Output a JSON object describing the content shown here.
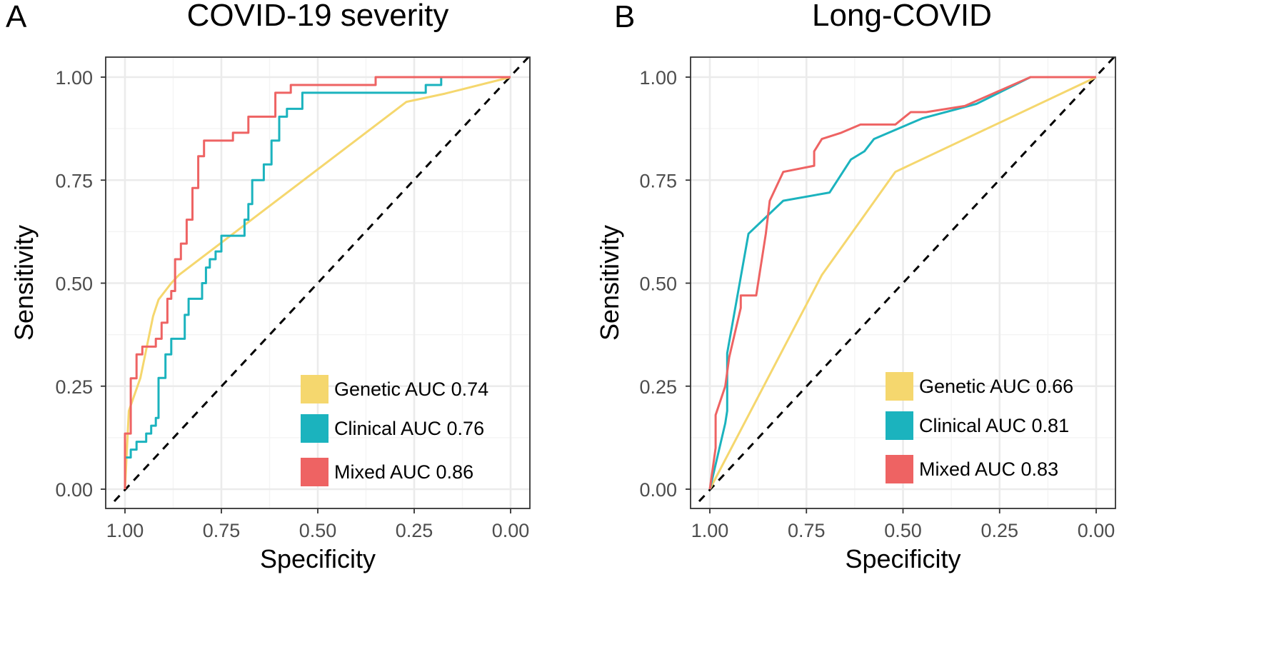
{
  "chart_data": [
    {
      "type": "line",
      "panel_label": "A",
      "title": "COVID-19 severity",
      "xlabel": "Specificity",
      "ylabel": "Sensitivity",
      "xlim": [
        1.0,
        0.0
      ],
      "ylim": [
        0.0,
        1.0
      ],
      "xticks": [
        "1.00",
        "0.75",
        "0.50",
        "0.25",
        "0.00"
      ],
      "yticks": [
        "0.00",
        "0.25",
        "0.50",
        "0.75",
        "1.00"
      ],
      "tick_values": [
        0,
        0.25,
        0.5,
        0.75,
        1.0
      ],
      "grid": true,
      "legend_position": "bottom-right",
      "reference_line": "diagonal dashed",
      "series": [
        {
          "name": "Genetic AUC 0.74",
          "color": "#F5D76E",
          "points": [
            [
              1.0,
              0.0
            ],
            [
              0.99,
              0.19
            ],
            [
              0.96,
              0.27
            ],
            [
              0.927,
              0.42
            ],
            [
              0.913,
              0.46
            ],
            [
              0.88,
              0.5
            ],
            [
              0.86,
              0.52
            ],
            [
              0.27,
              0.94
            ],
            [
              0.17,
              0.96
            ],
            [
              0.0,
              1.0
            ]
          ]
        },
        {
          "name": "Clinical AUC 0.76",
          "color": "#1BB3BE",
          "points": [
            [
              1.0,
              0.0
            ],
            [
              1.0,
              0.077
            ],
            [
              0.985,
              0.077
            ],
            [
              0.985,
              0.096
            ],
            [
              0.97,
              0.096
            ],
            [
              0.97,
              0.115
            ],
            [
              0.945,
              0.115
            ],
            [
              0.945,
              0.135
            ],
            [
              0.932,
              0.135
            ],
            [
              0.932,
              0.154
            ],
            [
              0.92,
              0.154
            ],
            [
              0.92,
              0.173
            ],
            [
              0.913,
              0.173
            ],
            [
              0.913,
              0.27
            ],
            [
              0.895,
              0.27
            ],
            [
              0.895,
              0.327
            ],
            [
              0.88,
              0.327
            ],
            [
              0.88,
              0.365
            ],
            [
              0.845,
              0.365
            ],
            [
              0.845,
              0.423
            ],
            [
              0.835,
              0.423
            ],
            [
              0.835,
              0.462
            ],
            [
              0.8,
              0.462
            ],
            [
              0.8,
              0.5
            ],
            [
              0.79,
              0.5
            ],
            [
              0.79,
              0.538
            ],
            [
              0.78,
              0.538
            ],
            [
              0.78,
              0.558
            ],
            [
              0.765,
              0.558
            ],
            [
              0.765,
              0.577
            ],
            [
              0.75,
              0.577
            ],
            [
              0.75,
              0.615
            ],
            [
              0.69,
              0.615
            ],
            [
              0.69,
              0.654
            ],
            [
              0.68,
              0.654
            ],
            [
              0.68,
              0.692
            ],
            [
              0.67,
              0.692
            ],
            [
              0.67,
              0.75
            ],
            [
              0.64,
              0.75
            ],
            [
              0.64,
              0.788
            ],
            [
              0.62,
              0.788
            ],
            [
              0.62,
              0.846
            ],
            [
              0.6,
              0.846
            ],
            [
              0.6,
              0.904
            ],
            [
              0.58,
              0.904
            ],
            [
              0.58,
              0.923
            ],
            [
              0.54,
              0.923
            ],
            [
              0.54,
              0.962
            ],
            [
              0.22,
              0.962
            ],
            [
              0.22,
              0.981
            ],
            [
              0.18,
              0.981
            ],
            [
              0.18,
              1.0
            ],
            [
              0.0,
              1.0
            ]
          ]
        },
        {
          "name": "Mixed AUC 0.86",
          "color": "#EE6363",
          "points": [
            [
              1.0,
              0.0
            ],
            [
              1.0,
              0.135
            ],
            [
              0.985,
              0.135
            ],
            [
              0.985,
              0.269
            ],
            [
              0.97,
              0.269
            ],
            [
              0.97,
              0.327
            ],
            [
              0.955,
              0.327
            ],
            [
              0.955,
              0.346
            ],
            [
              0.92,
              0.346
            ],
            [
              0.92,
              0.365
            ],
            [
              0.905,
              0.365
            ],
            [
              0.905,
              0.404
            ],
            [
              0.89,
              0.404
            ],
            [
              0.89,
              0.462
            ],
            [
              0.88,
              0.462
            ],
            [
              0.88,
              0.481
            ],
            [
              0.87,
              0.481
            ],
            [
              0.87,
              0.558
            ],
            [
              0.855,
              0.558
            ],
            [
              0.855,
              0.596
            ],
            [
              0.84,
              0.596
            ],
            [
              0.84,
              0.654
            ],
            [
              0.825,
              0.654
            ],
            [
              0.825,
              0.731
            ],
            [
              0.81,
              0.731
            ],
            [
              0.81,
              0.808
            ],
            [
              0.795,
              0.808
            ],
            [
              0.795,
              0.846
            ],
            [
              0.72,
              0.846
            ],
            [
              0.72,
              0.865
            ],
            [
              0.68,
              0.865
            ],
            [
              0.68,
              0.904
            ],
            [
              0.61,
              0.904
            ],
            [
              0.61,
              0.962
            ],
            [
              0.57,
              0.962
            ],
            [
              0.57,
              0.981
            ],
            [
              0.35,
              0.981
            ],
            [
              0.35,
              1.0
            ],
            [
              0.0,
              1.0
            ]
          ]
        }
      ]
    },
    {
      "type": "line",
      "panel_label": "B",
      "title": "Long-COVID",
      "xlabel": "Specificity",
      "ylabel": "Sensitivity",
      "xlim": [
        1.0,
        0.0
      ],
      "ylim": [
        0.0,
        1.0
      ],
      "xticks": [
        "1.00",
        "0.75",
        "0.50",
        "0.25",
        "0.00"
      ],
      "yticks": [
        "0.00",
        "0.25",
        "0.50",
        "0.75",
        "1.00"
      ],
      "tick_values": [
        0,
        0.25,
        0.5,
        0.75,
        1.0
      ],
      "grid": true,
      "legend_position": "bottom-right",
      "reference_line": "diagonal dashed",
      "series": [
        {
          "name": "Genetic AUC 0.66",
          "color": "#F5D76E",
          "points": [
            [
              1.0,
              0.0
            ],
            [
              0.71,
              0.52
            ],
            [
              0.52,
              0.77
            ],
            [
              0.0,
              1.0
            ]
          ]
        },
        {
          "name": "Clinical AUC 0.81",
          "color": "#1BB3BE",
          "points": [
            [
              1.0,
              0.0
            ],
            [
              0.96,
              0.16
            ],
            [
              0.955,
              0.19
            ],
            [
              0.955,
              0.33
            ],
            [
              0.9,
              0.62
            ],
            [
              0.81,
              0.7
            ],
            [
              0.69,
              0.72
            ],
            [
              0.635,
              0.8
            ],
            [
              0.6,
              0.82
            ],
            [
              0.575,
              0.85
            ],
            [
              0.45,
              0.9
            ],
            [
              0.31,
              0.935
            ],
            [
              0.17,
              1.0
            ],
            [
              0.0,
              1.0
            ]
          ]
        },
        {
          "name": "Mixed AUC 0.83",
          "color": "#EE6363",
          "points": [
            [
              1.0,
              0.0
            ],
            [
              0.985,
              0.1
            ],
            [
              0.985,
              0.18
            ],
            [
              0.96,
              0.25
            ],
            [
              0.95,
              0.32
            ],
            [
              0.935,
              0.38
            ],
            [
              0.925,
              0.42
            ],
            [
              0.92,
              0.44
            ],
            [
              0.92,
              0.47
            ],
            [
              0.88,
              0.47
            ],
            [
              0.87,
              0.53
            ],
            [
              0.855,
              0.62
            ],
            [
              0.845,
              0.7
            ],
            [
              0.81,
              0.77
            ],
            [
              0.73,
              0.785
            ],
            [
              0.73,
              0.82
            ],
            [
              0.71,
              0.85
            ],
            [
              0.66,
              0.865
            ],
            [
              0.61,
              0.885
            ],
            [
              0.52,
              0.885
            ],
            [
              0.48,
              0.915
            ],
            [
              0.44,
              0.915
            ],
            [
              0.34,
              0.93
            ],
            [
              0.17,
              1.0
            ],
            [
              0.0,
              1.0
            ]
          ]
        }
      ]
    }
  ]
}
